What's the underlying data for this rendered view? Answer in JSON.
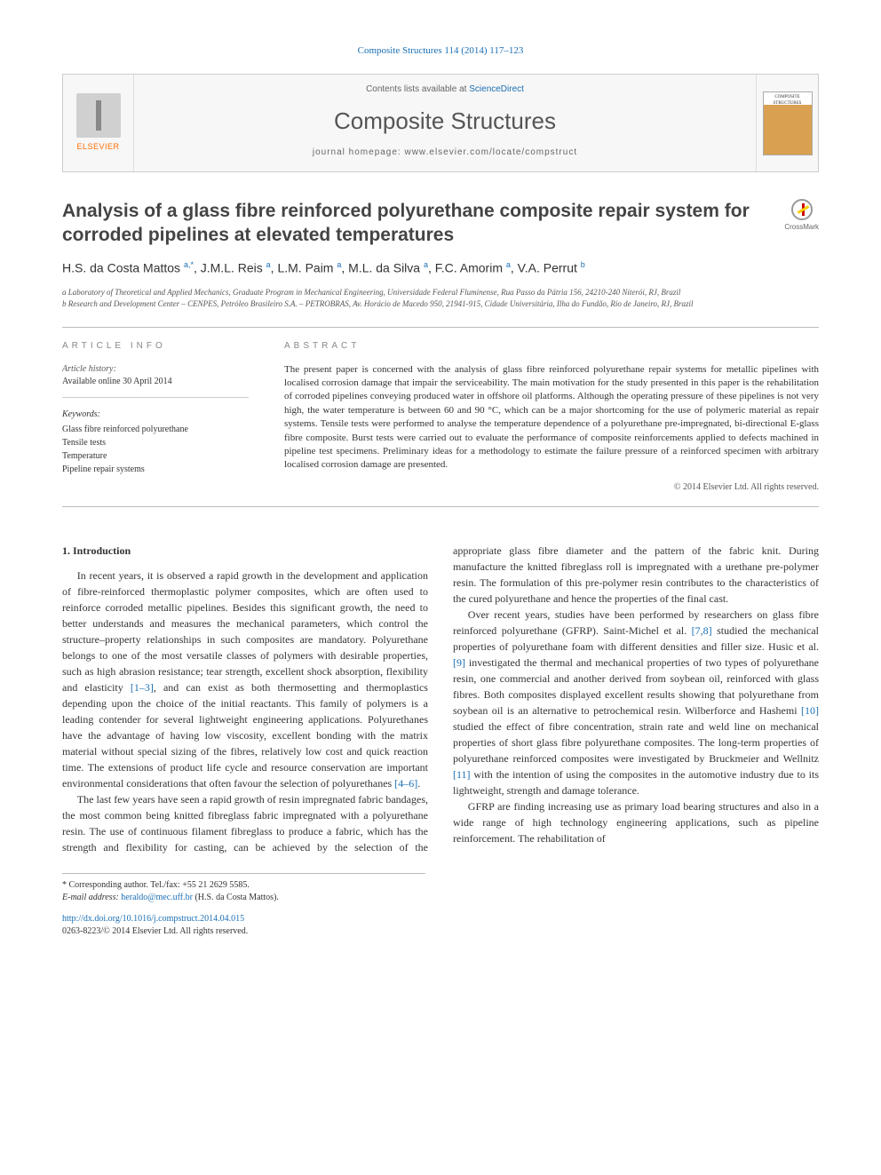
{
  "citation": "Composite Structures 114 (2014) 117–123",
  "header": {
    "contents_prefix": "Contents lists available at ",
    "contents_link": "ScienceDirect",
    "journal_name": "Composite Structures",
    "homepage": "journal homepage: www.elsevier.com/locate/compstruct",
    "elsevier_label": "ELSEVIER",
    "cover_label": "COMPOSITE STRUCTURES"
  },
  "crossmark": "CrossMark",
  "title": "Analysis of a glass fibre reinforced polyurethane composite repair system for corroded pipelines at elevated temperatures",
  "authors_html": "H.S. da Costa Mattos <sup>a,*</sup>, J.M.L. Reis <sup>a</sup>, L.M. Paim <sup>a</sup>, M.L. da Silva <sup>a</sup>, F.C. Amorim <sup>a</sup>, V.A. Perrut <sup>b</sup>",
  "affiliations": {
    "a": "a Laboratory of Theoretical and Applied Mechanics, Graduate Program in Mechanical Engineering, Universidade Federal Fluminense, Rua Passo da Pátria 156, 24210-240 Niterói, RJ, Brazil",
    "b": "b Research and Development Center – CENPES, Petróleo Brasileiro S.A. – PETROBRAS, Av. Horácio de Macedo 950, 21941-915, Cidade Universitária, Ilha do Fundão, Rio de Janeiro, RJ, Brazil"
  },
  "info": {
    "heading": "ARTICLE INFO",
    "history_label": "Article history:",
    "history_line": "Available online 30 April 2014",
    "keywords_label": "Keywords:",
    "keywords": [
      "Glass fibre reinforced polyurethane",
      "Tensile tests",
      "Temperature",
      "Pipeline repair systems"
    ]
  },
  "abstract": {
    "heading": "ABSTRACT",
    "text": "The present paper is concerned with the analysis of glass fibre reinforced polyurethane repair systems for metallic pipelines with localised corrosion damage that impair the serviceability. The main motivation for the study presented in this paper is the rehabilitation of corroded pipelines conveying produced water in offshore oil platforms. Although the operating pressure of these pipelines is not very high, the water temperature is between 60 and 90 °C, which can be a major shortcoming for the use of polymeric material as repair systems. Tensile tests were performed to analyse the temperature dependence of a polyurethane pre-impregnated, bi-directional E-glass fibre composite. Burst tests were carried out to evaluate the performance of composite reinforcements applied to defects machined in pipeline test specimens. Preliminary ideas for a methodology to estimate the failure pressure of a reinforced specimen with arbitrary localised corrosion damage are presented.",
    "copyright": "© 2014 Elsevier Ltd. All rights reserved."
  },
  "body": {
    "section_heading": "1. Introduction",
    "paragraphs": [
      "In recent years, it is observed a rapid growth in the development and application of fibre-reinforced thermoplastic polymer composites, which are often used to reinforce corroded metallic pipelines. Besides this significant growth, the need to better understands and measures the mechanical parameters, which control the structure–property relationships in such composites are mandatory. Polyurethane belongs to one of the most versatile classes of polymers with desirable properties, such as high abrasion resistance; tear strength, excellent shock absorption, flexibility and elasticity [1–3], and can exist as both thermosetting and thermoplastics depending upon the choice of the initial reactants. This family of polymers is a leading contender for several lightweight engineering applications. Polyurethanes have the advantage of having low viscosity, excellent bonding with the matrix material without special sizing of the fibres, relatively low cost and quick reaction time. The extensions of product life cycle and resource conservation are important environmental considerations that often favour the selection of polyurethanes [4–6].",
      "The last few years have seen a rapid growth of resin impregnated fabric bandages, the most common being knitted fibreglass fabric impregnated with a polyurethane resin. The use of continuous filament fibreglass to produce a fabric, which has the strength and flexibility for casting, can be achieved by the selection of the appropriate glass fibre diameter and the pattern of the fabric knit. During manufacture the knitted fibreglass roll is impregnated with a urethane pre-polymer resin. The formulation of this pre-polymer resin contributes to the characteristics of the cured polyurethane and hence the properties of the final cast.",
      "Over recent years, studies have been performed by researchers on glass fibre reinforced polyurethane (GFRP). Saint-Michel et al. [7,8] studied the mechanical properties of polyurethane foam with different densities and filler size. Husic et al. [9] investigated the thermal and mechanical properties of two types of polyurethane resin, one commercial and another derived from soybean oil, reinforced with glass fibres. Both composites displayed excellent results showing that polyurethane from soybean oil is an alternative to petrochemical resin. Wilberforce and Hashemi [10] studied the effect of fibre concentration, strain rate and weld line on mechanical properties of short glass fibre polyurethane composites. The long-term properties of polyurethane reinforced composites were investigated by Bruckmeier and Wellnitz [11] with the intention of using the composites in the automotive industry due to its lightweight, strength and damage tolerance.",
      "GFRP are finding increasing use as primary load bearing structures and also in a wide range of high technology engineering applications, such as pipeline reinforcement. The rehabilitation of"
    ],
    "ref_links": {
      "r1": "[1–3]",
      "r2": "[4–6]",
      "r3": "[7,8]",
      "r4": "[9]",
      "r5": "[10]",
      "r6": "[11]"
    }
  },
  "footer": {
    "corr_note": "* Corresponding author. Tel./fax: +55 21 2629 5585.",
    "email_label": "E-mail address:",
    "email": "heraldo@mec.uff.br",
    "email_owner": " (H.S. da Costa Mattos).",
    "doi": "http://dx.doi.org/10.1016/j.compstruct.2014.04.015",
    "issn_line": "0263-8223/© 2014 Elsevier Ltd. All rights reserved."
  },
  "colors": {
    "link": "#1a6fb5",
    "text": "#333333",
    "rule": "#bbbbbb",
    "elsevier_orange": "#ff6c00"
  }
}
